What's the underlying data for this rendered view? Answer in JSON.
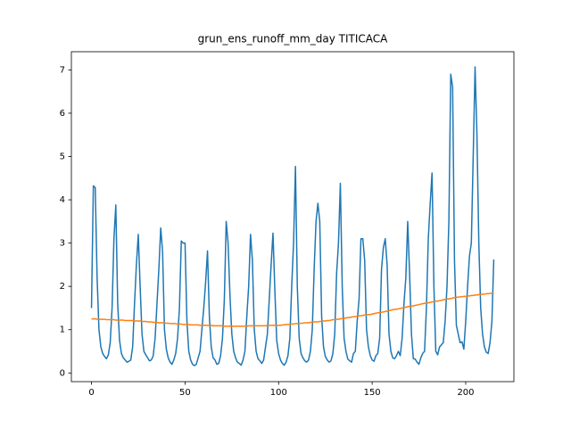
{
  "chart_data": {
    "type": "line",
    "title": "grun_ens_runoff_mm_day TITICACA",
    "x": [
      0,
      1,
      2,
      3,
      4,
      5,
      6,
      7,
      8,
      9,
      10,
      11,
      12,
      13,
      14,
      15,
      16,
      17,
      18,
      19,
      20,
      21,
      22,
      23,
      24,
      25,
      26,
      27,
      28,
      29,
      30,
      31,
      32,
      33,
      34,
      35,
      36,
      37,
      38,
      39,
      40,
      41,
      42,
      43,
      44,
      45,
      46,
      47,
      48,
      49,
      50,
      51,
      52,
      53,
      54,
      55,
      56,
      57,
      58,
      59,
      60,
      61,
      62,
      63,
      64,
      65,
      66,
      67,
      68,
      69,
      70,
      71,
      72,
      73,
      74,
      75,
      76,
      77,
      78,
      79,
      80,
      81,
      82,
      83,
      84,
      85,
      86,
      87,
      88,
      89,
      90,
      91,
      92,
      93,
      94,
      95,
      96,
      97,
      98,
      99,
      100,
      101,
      102,
      103,
      104,
      105,
      106,
      107,
      108,
      109,
      110,
      111,
      112,
      113,
      114,
      115,
      116,
      117,
      118,
      119,
      120,
      121,
      122,
      123,
      124,
      125,
      126,
      127,
      128,
      129,
      130,
      131,
      132,
      133,
      134,
      135,
      136,
      137,
      138,
      139,
      140,
      141,
      142,
      143,
      144,
      145,
      146,
      147,
      148,
      149,
      150,
      151,
      152,
      153,
      154,
      155,
      156,
      157,
      158,
      159,
      160,
      161,
      162,
      163,
      164,
      165,
      166,
      167,
      168,
      169,
      170,
      171,
      172,
      173,
      174,
      175,
      176,
      177,
      178,
      179,
      180,
      181,
      182,
      183,
      184,
      185,
      186,
      187,
      188,
      189,
      190,
      191,
      192,
      193,
      194,
      195,
      196,
      197,
      198,
      199,
      200,
      201,
      202,
      203,
      204,
      205,
      206,
      207,
      208,
      209,
      210,
      211,
      212,
      213,
      214,
      215
    ],
    "series": [
      {
        "color": "#1f77b4",
        "values": [
          1.5,
          4.32,
          4.28,
          2.2,
          1.0,
          0.6,
          0.45,
          0.38,
          0.33,
          0.42,
          0.7,
          1.5,
          3.1,
          3.88,
          1.6,
          0.75,
          0.45,
          0.35,
          0.3,
          0.25,
          0.27,
          0.3,
          0.6,
          1.6,
          2.5,
          3.2,
          2.0,
          0.9,
          0.5,
          0.42,
          0.35,
          0.28,
          0.3,
          0.4,
          0.8,
          1.6,
          2.4,
          3.35,
          2.8,
          1.0,
          0.55,
          0.35,
          0.25,
          0.2,
          0.3,
          0.45,
          0.8,
          1.5,
          3.05,
          3.0,
          3.0,
          1.2,
          0.5,
          0.3,
          0.2,
          0.17,
          0.2,
          0.35,
          0.5,
          1.0,
          1.5,
          2.1,
          2.82,
          1.3,
          0.6,
          0.35,
          0.3,
          0.2,
          0.22,
          0.4,
          0.8,
          1.7,
          3.5,
          3.0,
          1.8,
          0.9,
          0.5,
          0.35,
          0.25,
          0.22,
          0.18,
          0.3,
          0.5,
          1.3,
          2.0,
          3.2,
          2.6,
          1.0,
          0.5,
          0.33,
          0.28,
          0.22,
          0.3,
          0.6,
          0.9,
          1.7,
          2.5,
          3.23,
          1.9,
          0.75,
          0.45,
          0.3,
          0.22,
          0.18,
          0.25,
          0.4,
          0.8,
          2.0,
          3.0,
          4.77,
          2.0,
          0.8,
          0.45,
          0.35,
          0.28,
          0.25,
          0.3,
          0.5,
          1.0,
          2.4,
          3.5,
          3.92,
          3.5,
          1.3,
          0.6,
          0.38,
          0.3,
          0.25,
          0.28,
          0.45,
          0.9,
          2.3,
          3.0,
          4.38,
          2.0,
          0.8,
          0.5,
          0.32,
          0.28,
          0.25,
          0.45,
          0.5,
          1.2,
          1.7,
          3.1,
          3.1,
          2.6,
          1.0,
          0.6,
          0.4,
          0.3,
          0.27,
          0.4,
          0.45,
          0.8,
          2.4,
          2.9,
          3.1,
          2.5,
          0.9,
          0.5,
          0.35,
          0.33,
          0.4,
          0.5,
          0.4,
          0.8,
          1.6,
          2.2,
          3.5,
          2.3,
          0.9,
          0.33,
          0.32,
          0.25,
          0.2,
          0.35,
          0.45,
          0.5,
          1.5,
          3.1,
          3.9,
          4.62,
          2.0,
          0.5,
          0.42,
          0.6,
          0.65,
          0.7,
          1.2,
          2.0,
          3.5,
          6.9,
          6.6,
          2.6,
          1.1,
          0.9,
          0.7,
          0.72,
          0.55,
          1.2,
          2.0,
          2.7,
          3.0,
          5.0,
          7.07,
          5.5,
          3.0,
          1.5,
          0.9,
          0.6,
          0.48,
          0.45,
          0.7,
          1.2,
          2.62
        ]
      },
      {
        "color": "#ff7f0e",
        "values": [
          1.25,
          1.25,
          1.25,
          1.24,
          1.24,
          1.24,
          1.24,
          1.24,
          1.23,
          1.23,
          1.23,
          1.23,
          1.23,
          1.22,
          1.22,
          1.22,
          1.22,
          1.22,
          1.21,
          1.21,
          1.21,
          1.21,
          1.21,
          1.2,
          1.2,
          1.2,
          1.2,
          1.19,
          1.19,
          1.19,
          1.18,
          1.18,
          1.18,
          1.17,
          1.17,
          1.17,
          1.16,
          1.16,
          1.16,
          1.15,
          1.15,
          1.15,
          1.14,
          1.14,
          1.14,
          1.14,
          1.13,
          1.13,
          1.13,
          1.12,
          1.12,
          1.12,
          1.12,
          1.11,
          1.11,
          1.11,
          1.11,
          1.11,
          1.1,
          1.1,
          1.1,
          1.1,
          1.1,
          1.1,
          1.1,
          1.09,
          1.09,
          1.09,
          1.09,
          1.09,
          1.09,
          1.08,
          1.08,
          1.08,
          1.08,
          1.08,
          1.08,
          1.08,
          1.08,
          1.08,
          1.08,
          1.08,
          1.08,
          1.08,
          1.09,
          1.09,
          1.09,
          1.09,
          1.09,
          1.09,
          1.09,
          1.09,
          1.09,
          1.09,
          1.1,
          1.1,
          1.1,
          1.1,
          1.1,
          1.1,
          1.1,
          1.1,
          1.11,
          1.11,
          1.12,
          1.12,
          1.12,
          1.13,
          1.13,
          1.14,
          1.14,
          1.14,
          1.15,
          1.15,
          1.16,
          1.16,
          1.16,
          1.17,
          1.17,
          1.18,
          1.18,
          1.18,
          1.19,
          1.19,
          1.2,
          1.2,
          1.21,
          1.21,
          1.22,
          1.23,
          1.23,
          1.24,
          1.24,
          1.25,
          1.26,
          1.26,
          1.27,
          1.28,
          1.28,
          1.29,
          1.3,
          1.3,
          1.31,
          1.32,
          1.32,
          1.33,
          1.34,
          1.34,
          1.35,
          1.35,
          1.36,
          1.37,
          1.38,
          1.39,
          1.4,
          1.4,
          1.41,
          1.42,
          1.43,
          1.44,
          1.45,
          1.46,
          1.47,
          1.47,
          1.48,
          1.49,
          1.5,
          1.51,
          1.52,
          1.53,
          1.54,
          1.54,
          1.55,
          1.56,
          1.57,
          1.58,
          1.59,
          1.6,
          1.61,
          1.61,
          1.62,
          1.63,
          1.64,
          1.65,
          1.66,
          1.66,
          1.67,
          1.68,
          1.69,
          1.7,
          1.71,
          1.71,
          1.72,
          1.73,
          1.74,
          1.75,
          1.75,
          1.76,
          1.76,
          1.77,
          1.77,
          1.78,
          1.78,
          1.79,
          1.79,
          1.8,
          1.8,
          1.81,
          1.81,
          1.82,
          1.82,
          1.83,
          1.83,
          1.84,
          1.84,
          1.84
        ]
      }
    ],
    "xlim": [
      -10.75,
      225.75
    ],
    "xticks": [
      0,
      50,
      100,
      150,
      200
    ],
    "ylim": [
      -0.2,
      7.42
    ],
    "yticks": [
      0,
      1,
      2,
      3,
      4,
      5,
      6,
      7
    ],
    "grid": false
  }
}
